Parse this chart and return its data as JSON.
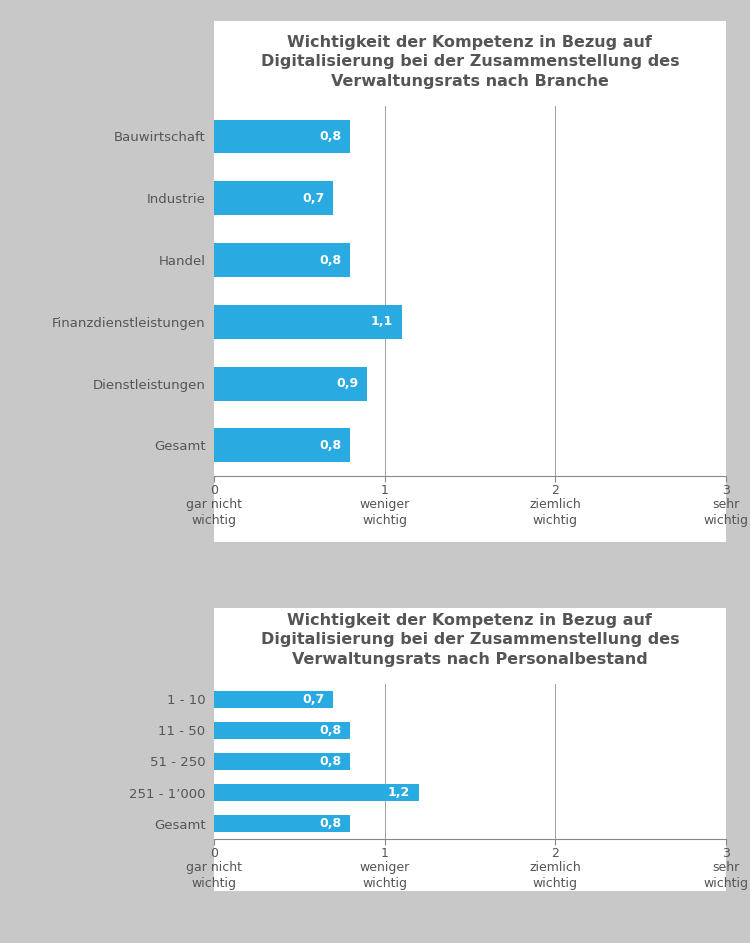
{
  "chart1": {
    "title": "Wichtigkeit der Kompetenz in Bezug auf\nDigitalisierung bei der Zusammenstellung des\nVerwaltungsrats nach Branche",
    "categories": [
      "Bauwirtschaft",
      "Industrie",
      "Handel",
      "Finanzdienstleistungen",
      "Dienstleistungen",
      "Gesamt"
    ],
    "values": [
      0.8,
      0.7,
      0.8,
      1.1,
      0.9,
      0.8
    ]
  },
  "chart2": {
    "title": "Wichtigkeit der Kompetenz in Bezug auf\nDigitalisierung bei der Zusammenstellung des\nVerwaltungsrats nach Personalbestand",
    "categories": [
      "1 - 10",
      "11 - 50",
      "51 - 250",
      "251 - 1’000",
      "Gesamt"
    ],
    "values": [
      0.7,
      0.8,
      0.8,
      1.2,
      0.8
    ]
  },
  "bar_color": "#29ABE2",
  "background_outer": "#C8C8C8",
  "background_inner": "#FFFFFF",
  "text_color": "#555555",
  "label_color": "#FFFFFF",
  "axis_color": "#888888",
  "vline_color": "#888888",
  "xlim": [
    0,
    3
  ],
  "xticks": [
    0,
    1,
    2,
    3
  ],
  "xtick_main": [
    "0",
    "1",
    "2",
    "3"
  ],
  "xtick_sub": [
    "gar nicht\nwichtig",
    "weniger\nwichtig",
    "ziemlich\nwichtig",
    "sehr\nwichtig"
  ],
  "bar_height": 0.55,
  "title_fontsize": 11.5,
  "tick_fontsize": 9,
  "category_fontsize": 9.5,
  "value_label_fontsize": 9,
  "fig_width": 7.5,
  "fig_height": 9.43
}
